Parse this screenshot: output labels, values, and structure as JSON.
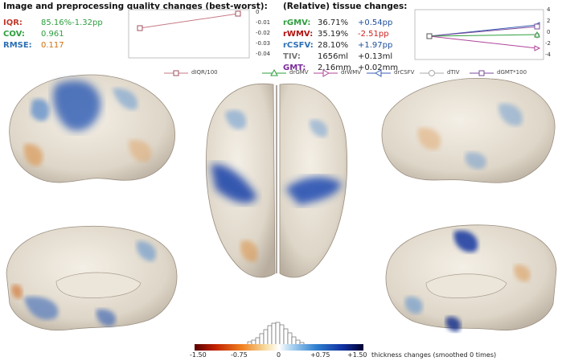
{
  "quality": {
    "title": "Image and preprocessing quality changes (best-worst):",
    "metrics": [
      {
        "label": "IQR:",
        "value": "85.16%-1.32pp",
        "label_color": "#c0392b",
        "value_color": "#2e9e3e"
      },
      {
        "label": "COV:",
        "value": "0.961",
        "label_color": "#2e9e3e",
        "value_color": "#2e9e3e"
      },
      {
        "label": "RMSE:",
        "value": "0.117",
        "label_color": "#2c6fb5",
        "value_color": "#d07010"
      }
    ],
    "chart": {
      "yticks": [
        "0",
        "-0.01",
        "-0.02",
        "-0.03",
        "-0.04"
      ],
      "legend": "dIQR/100"
    }
  },
  "tissue": {
    "title": "(Relative) tissue changes:",
    "rows": [
      {
        "label": "rGMV:",
        "val": "36.71%",
        "change": "+0.54pp",
        "label_color": "#2e9e3e",
        "change_color": "#1f4fa0"
      },
      {
        "label": "rWMV:",
        "val": "35.19%",
        "change": "-2.51pp",
        "label_color": "#b01010",
        "change_color": "#d02020"
      },
      {
        "label": "rCSFV:",
        "val": "28.10%",
        "change": "+1.97pp",
        "label_color": "#2c6fb5",
        "change_color": "#1f4fa0"
      },
      {
        "label": "TIV:",
        "val": "1656ml",
        "change": "+0.13ml",
        "label_color": "#777777",
        "change_color": "#222222"
      },
      {
        "label": "GMT:",
        "val": "2.16mm",
        "change": "+0.02mm",
        "label_color": "#7a2a9a",
        "change_color": "#222222"
      }
    ],
    "chart": {
      "yticks": [
        "4",
        "2",
        "0",
        "-2",
        "-4"
      ],
      "legend": [
        "drGMV",
        "drWMV",
        "drCSFV",
        "dTIV",
        "dGMT*100"
      ],
      "legend_colors": [
        "#2e9e3e",
        "#b0449a",
        "#2c5fb5",
        "#aaaaaa",
        "#7a4a9a"
      ]
    }
  },
  "colorbar": {
    "ticks": [
      "-1.50",
      "-0.75",
      "0",
      "+0.75",
      "+1.50"
    ],
    "caption": "thickness changes (smoothed 0 times)"
  }
}
